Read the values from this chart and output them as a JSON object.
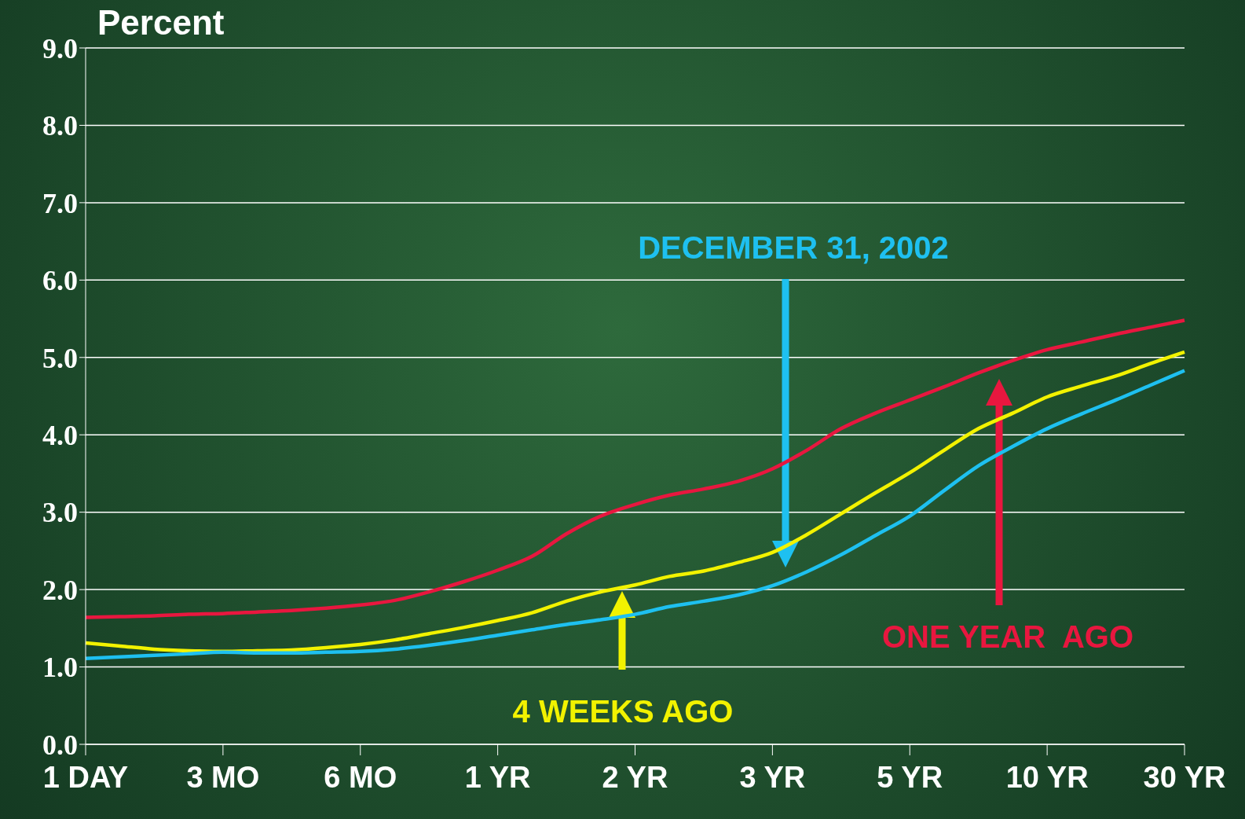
{
  "chart_data": {
    "type": "line",
    "ylabel": "Percent",
    "categories": [
      "1 DAY",
      null,
      null,
      null,
      "3 MO",
      null,
      null,
      null,
      "6 MO",
      null,
      null,
      null,
      "1 YR",
      null,
      null,
      null,
      "2 YR",
      null,
      null,
      null,
      "3 YR",
      null,
      null,
      null,
      "5 YR",
      null,
      null,
      null,
      "10 YR",
      null,
      null,
      null,
      "30 YR"
    ],
    "ylim": [
      0,
      9
    ],
    "yticks": [
      {
        "value": 0,
        "label": "0.0"
      },
      {
        "value": 1,
        "label": "1.0"
      },
      {
        "value": 2,
        "label": "2.0"
      },
      {
        "value": 3,
        "label": "3.0"
      },
      {
        "value": 4,
        "label": "4.0"
      },
      {
        "value": 5,
        "label": "5.0"
      },
      {
        "value": 6,
        "label": "6.0"
      },
      {
        "value": 7,
        "label": "7.0"
      },
      {
        "value": 8,
        "label": "8.0"
      },
      {
        "value": 9,
        "label": "9.0"
      }
    ],
    "grid": "y",
    "marker": "none",
    "line_style": "solid",
    "series": [
      {
        "name": "ONE YEAR  AGO",
        "color": "#e8173f",
        "values": [
          1.64,
          1.65,
          1.66,
          1.68,
          1.69,
          1.71,
          1.73,
          1.76,
          1.8,
          1.86,
          1.97,
          2.1,
          2.25,
          2.43,
          2.72,
          2.95,
          3.1,
          3.22,
          3.3,
          3.4,
          3.56,
          3.8,
          4.08,
          4.28,
          4.45,
          4.62,
          4.8,
          4.96,
          5.1,
          5.2,
          5.3,
          5.39,
          5.48
        ]
      },
      {
        "name": "4 WEEKS AGO",
        "color": "#f2f200",
        "values": [
          1.31,
          1.27,
          1.23,
          1.21,
          1.2,
          1.21,
          1.22,
          1.25,
          1.29,
          1.35,
          1.43,
          1.51,
          1.6,
          1.7,
          1.85,
          1.97,
          2.06,
          2.17,
          2.24,
          2.35,
          2.48,
          2.71,
          2.98,
          3.25,
          3.51,
          3.8,
          4.08,
          4.28,
          4.49,
          4.63,
          4.76,
          4.92,
          5.07
        ]
      },
      {
        "name": "DECEMBER 31, 2002",
        "color": "#1ec0f0",
        "values": [
          1.11,
          1.13,
          1.15,
          1.17,
          1.19,
          1.18,
          1.18,
          1.19,
          1.2,
          1.23,
          1.28,
          1.34,
          1.41,
          1.48,
          1.55,
          1.61,
          1.68,
          1.78,
          1.85,
          1.93,
          2.05,
          2.23,
          2.45,
          2.7,
          2.95,
          3.28,
          3.6,
          3.85,
          4.08,
          4.27,
          4.45,
          4.64,
          4.83
        ]
      }
    ]
  }
}
